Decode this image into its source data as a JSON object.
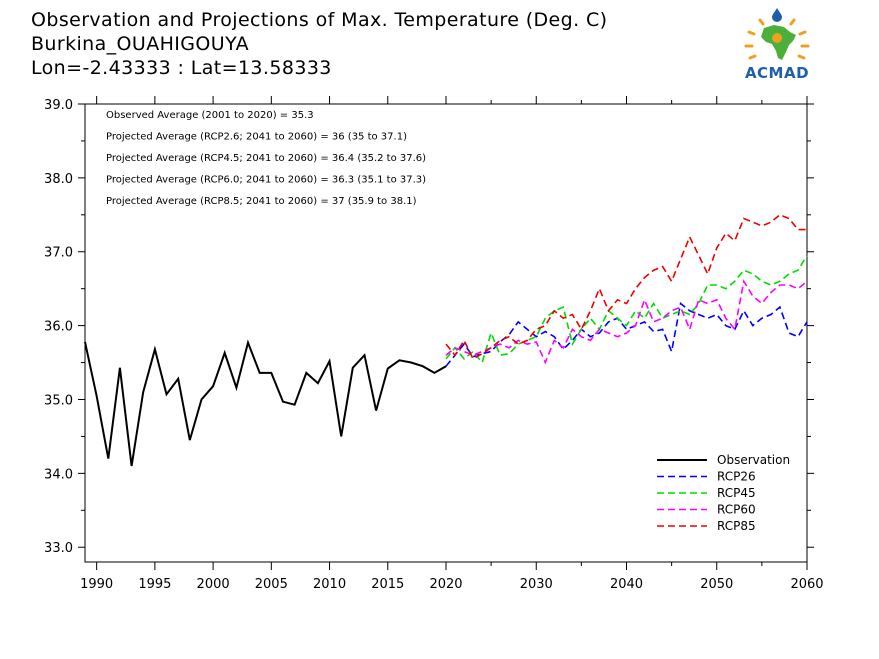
{
  "header": {
    "line1": "Observation and Projections of Max. Temperature (Deg. C)",
    "line2": "Burkina_OUAHIGOUYA",
    "line3": "Lon=-2.43333 : Lat=13.58333"
  },
  "logo": {
    "text": "ACMAD",
    "icon": "acmad-africa-logo",
    "colors": {
      "africa": "#4caf3a",
      "sun": "#f0a020",
      "drop": "#1f5fa8"
    }
  },
  "chart_data": {
    "type": "line",
    "title": "Observation and Projections of Max. Temperature (Deg. C)",
    "xlabel": "",
    "ylabel": "",
    "xlim": [
      1989,
      2060
    ],
    "ylim": [
      32.8,
      39.0
    ],
    "grid": false,
    "legend_position": "bottom-right",
    "x_ticks": [
      {
        "value": 1990,
        "label": "1990"
      },
      {
        "value": 1995,
        "label": "1995"
      },
      {
        "value": 2000,
        "label": "2000"
      },
      {
        "value": 2005,
        "label": "2005"
      },
      {
        "value": 2010,
        "label": "2010"
      },
      {
        "value": 2015,
        "label": "2015"
      },
      {
        "value": 2020,
        "label": "2020"
      },
      {
        "value": 2030,
        "label": "2030"
      },
      {
        "value": 2040,
        "label": "2040"
      },
      {
        "value": 2050,
        "label": "2050"
      },
      {
        "value": 2060,
        "label": "2060"
      }
    ],
    "y_ticks": [
      {
        "value": 33.0,
        "label": "33.0"
      },
      {
        "value": 34.0,
        "label": "34.0"
      },
      {
        "value": 35.0,
        "label": "35.0"
      },
      {
        "value": 36.0,
        "label": "36.0"
      },
      {
        "value": 37.0,
        "label": "37.0"
      },
      {
        "value": 38.0,
        "label": "38.0"
      },
      {
        "value": 39.0,
        "label": "39.0"
      }
    ],
    "annotations": [
      "Observed Average (2001 to 2020) = 35.3",
      "Projected Average (RCP2.6; 2041 to 2060) = 36 (35 to 37.1)",
      "Projected Average (RCP4.5; 2041 to 2060) = 36.4 (35.2 to 37.6)",
      "Projected Average (RCP6.0; 2041 to 2060) = 36.3 (35.1 to 37.3)",
      "Projected Average (RCP8.5; 2041 to 2060) = 37 (35.9 to 38.1)"
    ],
    "series": [
      {
        "name": "Observation",
        "color": "#000000",
        "dash": "solid",
        "x": [
          1989,
          1990,
          1991,
          1992,
          1993,
          1994,
          1995,
          1996,
          1997,
          1998,
          1999,
          2000,
          2001,
          2002,
          2003,
          2004,
          2005,
          2006,
          2007,
          2008,
          2009,
          2010,
          2011,
          2012,
          2013,
          2014,
          2015,
          2016,
          2017,
          2018,
          2019,
          2020
        ],
        "values": [
          35.78,
          35.05,
          34.2,
          35.43,
          34.1,
          35.1,
          35.68,
          35.07,
          35.28,
          34.45,
          35.0,
          35.18,
          35.63,
          35.16,
          35.77,
          35.36,
          35.36,
          34.97,
          34.93,
          35.36,
          35.22,
          35.52,
          34.5,
          35.43,
          35.6,
          34.85,
          35.42,
          35.53,
          35.5,
          35.45,
          35.36,
          35.45
        ]
      },
      {
        "name": "RCP26",
        "color": "#0000ff",
        "dash": "dashed",
        "x": [
          2020,
          2021,
          2022,
          2023,
          2024,
          2025,
          2026,
          2027,
          2028,
          2029,
          2030,
          2031,
          2032,
          2033,
          2034,
          2035,
          2036,
          2037,
          2038,
          2039,
          2040,
          2041,
          2042,
          2043,
          2044,
          2045,
          2046,
          2047,
          2048,
          2049,
          2050,
          2051,
          2052,
          2053,
          2054,
          2055,
          2056,
          2057,
          2058,
          2059,
          2060
        ],
        "values": [
          35.45,
          35.6,
          35.75,
          35.58,
          35.62,
          35.65,
          35.78,
          35.88,
          36.05,
          35.95,
          35.85,
          35.92,
          35.85,
          35.68,
          35.8,
          35.95,
          35.85,
          35.9,
          36.05,
          36.1,
          35.95,
          36.0,
          36.05,
          35.92,
          35.95,
          35.65,
          36.3,
          36.2,
          36.15,
          36.1,
          36.15,
          36.0,
          35.95,
          36.2,
          36.0,
          36.1,
          36.15,
          36.25,
          35.9,
          35.85,
          36.05
        ]
      },
      {
        "name": "RCP45",
        "color": "#00dd00",
        "dash": "dashed",
        "x": [
          2020,
          2021,
          2022,
          2023,
          2024,
          2025,
          2026,
          2027,
          2028,
          2029,
          2030,
          2031,
          2032,
          2033,
          2034,
          2035,
          2036,
          2037,
          2038,
          2039,
          2040,
          2041,
          2042,
          2043,
          2044,
          2045,
          2046,
          2047,
          2048,
          2049,
          2050,
          2051,
          2052,
          2053,
          2054,
          2055,
          2056,
          2057,
          2058,
          2059,
          2060
        ],
        "values": [
          35.55,
          35.7,
          35.55,
          35.65,
          35.5,
          35.9,
          35.6,
          35.62,
          35.75,
          35.8,
          35.85,
          36.1,
          36.2,
          36.25,
          35.75,
          35.95,
          36.1,
          35.95,
          36.2,
          36.1,
          36.0,
          36.2,
          36.1,
          36.3,
          36.1,
          36.15,
          36.2,
          36.15,
          36.3,
          36.55,
          36.55,
          36.5,
          36.6,
          36.75,
          36.7,
          36.6,
          36.55,
          36.6,
          36.7,
          36.75,
          36.95
        ]
      },
      {
        "name": "RCP60",
        "color": "#ff00ff",
        "dash": "dashed",
        "x": [
          2020,
          2021,
          2022,
          2023,
          2024,
          2025,
          2026,
          2027,
          2028,
          2029,
          2030,
          2031,
          2032,
          2033,
          2034,
          2035,
          2036,
          2037,
          2038,
          2039,
          2040,
          2041,
          2042,
          2043,
          2044,
          2045,
          2046,
          2047,
          2048,
          2049,
          2050,
          2051,
          2052,
          2053,
          2054,
          2055,
          2056,
          2057,
          2058,
          2059,
          2060
        ],
        "values": [
          35.6,
          35.7,
          35.65,
          35.6,
          35.65,
          35.7,
          35.75,
          35.7,
          35.8,
          35.75,
          35.78,
          35.5,
          35.8,
          35.7,
          35.95,
          35.85,
          35.8,
          35.95,
          35.9,
          35.85,
          35.9,
          36.0,
          36.35,
          36.05,
          36.1,
          36.2,
          36.25,
          35.95,
          36.35,
          36.3,
          36.35,
          36.1,
          35.95,
          36.6,
          36.4,
          36.3,
          36.45,
          36.55,
          36.55,
          36.5,
          36.6
        ]
      },
      {
        "name": "RCP85",
        "color": "#ee0000",
        "dash": "dashed",
        "x": [
          2020,
          2021,
          2022,
          2023,
          2024,
          2025,
          2026,
          2027,
          2028,
          2029,
          2030,
          2031,
          2032,
          2033,
          2034,
          2035,
          2036,
          2037,
          2038,
          2039,
          2040,
          2041,
          2042,
          2043,
          2044,
          2045,
          2046,
          2047,
          2048,
          2049,
          2050,
          2051,
          2052,
          2053,
          2054,
          2055,
          2056,
          2057,
          2058,
          2059,
          2060
        ],
        "values": [
          35.75,
          35.6,
          35.8,
          35.55,
          35.62,
          35.7,
          35.8,
          35.85,
          35.75,
          35.8,
          35.95,
          36.0,
          36.2,
          36.1,
          36.15,
          35.95,
          36.2,
          36.5,
          36.2,
          36.35,
          36.3,
          36.5,
          36.65,
          36.75,
          36.8,
          36.6,
          36.9,
          37.2,
          36.95,
          36.7,
          37.05,
          37.25,
          37.15,
          37.45,
          37.4,
          37.35,
          37.4,
          37.5,
          37.45,
          37.3,
          37.3
        ]
      }
    ]
  }
}
